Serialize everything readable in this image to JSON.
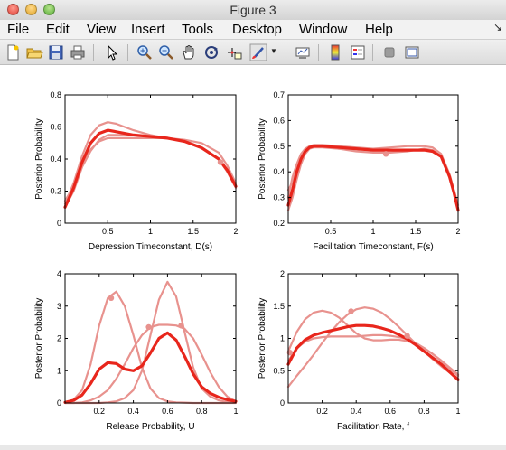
{
  "window": {
    "title": "Figure 3"
  },
  "menu": [
    "File",
    "Edit",
    "View",
    "Insert",
    "Tools",
    "Desktop",
    "Window",
    "Help"
  ],
  "menu_overflow_icon": "arrow-icon",
  "toolbar": [
    "new-figure-icon",
    "open-file-icon",
    "save-icon",
    "print-icon",
    "pointer-icon",
    "zoom-in-icon",
    "zoom-out-icon",
    "pan-hand-icon",
    "rotate-3d-icon",
    "data-cursor-icon",
    "brush-icon",
    "brush-dropdown-icon",
    "link-plot-icon",
    "colorbar-icon",
    "legend-icon",
    "hide-plot-tools-icon",
    "show-plot-tools-icon"
  ],
  "colors": {
    "main": "#e8261c",
    "light": "#e8928e"
  },
  "chart_data": [
    {
      "type": "line",
      "xlabel": "Depression Timeconstant, D(s)",
      "ylabel": "Posterior Probability",
      "xlim": [
        0,
        2
      ],
      "ylim": [
        0,
        0.8
      ],
      "xticks": [
        "0.5",
        "1",
        "1.5",
        "2"
      ],
      "yticks": [
        "0",
        "0.2",
        "0.4",
        "0.6",
        "0.8"
      ],
      "series": [
        {
          "style": "main",
          "x": [
            0,
            0.1,
            0.2,
            0.3,
            0.4,
            0.5,
            0.6,
            0.8,
            1.0,
            1.2,
            1.4,
            1.6,
            1.8,
            1.9,
            2.0
          ],
          "y": [
            0.1,
            0.22,
            0.38,
            0.5,
            0.56,
            0.58,
            0.57,
            0.55,
            0.54,
            0.53,
            0.51,
            0.47,
            0.4,
            0.33,
            0.23
          ]
        },
        {
          "style": "light",
          "x": [
            0,
            0.1,
            0.2,
            0.3,
            0.4,
            0.5,
            0.6,
            0.8,
            1.0,
            1.2,
            1.4,
            1.6,
            1.8,
            1.9,
            2.0
          ],
          "y": [
            0.12,
            0.25,
            0.42,
            0.55,
            0.61,
            0.63,
            0.62,
            0.58,
            0.55,
            0.53,
            0.51,
            0.47,
            0.4,
            0.32,
            0.22
          ]
        },
        {
          "style": "light",
          "x": [
            0,
            0.1,
            0.2,
            0.3,
            0.4,
            0.5,
            0.6,
            0.8,
            1.0,
            1.2,
            1.4,
            1.6,
            1.8,
            1.9,
            2.0
          ],
          "y": [
            0.1,
            0.2,
            0.35,
            0.45,
            0.52,
            0.55,
            0.55,
            0.55,
            0.54,
            0.53,
            0.51,
            0.47,
            0.4,
            0.33,
            0.24
          ]
        },
        {
          "style": "light",
          "x": [
            0,
            0.1,
            0.2,
            0.3,
            0.4,
            0.5,
            0.6,
            0.8,
            1.0,
            1.2,
            1.4,
            1.6,
            1.8,
            1.9,
            2.0
          ],
          "y": [
            0.14,
            0.23,
            0.36,
            0.46,
            0.51,
            0.53,
            0.53,
            0.53,
            0.53,
            0.53,
            0.52,
            0.5,
            0.44,
            0.36,
            0.25
          ]
        }
      ],
      "markers": [
        {
          "x": 1.82,
          "y": 0.38
        }
      ]
    },
    {
      "type": "line",
      "xlabel": "Facilitation Timeconstant, F(s)",
      "ylabel": "Posterior Probability",
      "xlim": [
        0,
        2
      ],
      "ylim": [
        0.2,
        0.7
      ],
      "xticks": [
        "0.5",
        "1",
        "1.5",
        "2"
      ],
      "yticks": [
        "0.2",
        "0.3",
        "0.4",
        "0.5",
        "0.6",
        "0.7"
      ],
      "series": [
        {
          "style": "main",
          "x": [
            0,
            0.05,
            0.1,
            0.15,
            0.2,
            0.25,
            0.3,
            0.4,
            0.6,
            0.8,
            1.0,
            1.2,
            1.4,
            1.6,
            1.7,
            1.8,
            1.9,
            1.95,
            2.0
          ],
          "y": [
            0.27,
            0.33,
            0.4,
            0.45,
            0.48,
            0.495,
            0.5,
            0.5,
            0.495,
            0.49,
            0.485,
            0.485,
            0.485,
            0.485,
            0.48,
            0.46,
            0.38,
            0.32,
            0.25
          ]
        },
        {
          "style": "light",
          "x": [
            0,
            0.05,
            0.1,
            0.15,
            0.2,
            0.25,
            0.3,
            0.4,
            0.6,
            0.8,
            1.0,
            1.2,
            1.4,
            1.6,
            1.7,
            1.8,
            1.9,
            1.95,
            2.0
          ],
          "y": [
            0.3,
            0.38,
            0.43,
            0.47,
            0.49,
            0.5,
            0.505,
            0.505,
            0.5,
            0.495,
            0.49,
            0.485,
            0.485,
            0.485,
            0.48,
            0.46,
            0.38,
            0.32,
            0.26
          ]
        },
        {
          "style": "light",
          "x": [
            0,
            0.05,
            0.1,
            0.15,
            0.2,
            0.25,
            0.3,
            0.4,
            0.6,
            0.8,
            1.0,
            1.2,
            1.4,
            1.6,
            1.7,
            1.8,
            1.9,
            1.95,
            2.0
          ],
          "y": [
            0.25,
            0.3,
            0.37,
            0.43,
            0.47,
            0.49,
            0.5,
            0.5,
            0.49,
            0.48,
            0.475,
            0.475,
            0.48,
            0.49,
            0.485,
            0.46,
            0.38,
            0.32,
            0.25
          ]
        },
        {
          "style": "light",
          "x": [
            0,
            0.05,
            0.1,
            0.15,
            0.2,
            0.25,
            0.3,
            0.4,
            0.6,
            0.8,
            1.0,
            1.2,
            1.4,
            1.6,
            1.7,
            1.8,
            1.9,
            1.95,
            2.0
          ],
          "y": [
            0.33,
            0.36,
            0.41,
            0.45,
            0.48,
            0.49,
            0.495,
            0.495,
            0.49,
            0.49,
            0.49,
            0.495,
            0.5,
            0.5,
            0.495,
            0.47,
            0.39,
            0.33,
            0.27
          ]
        }
      ],
      "markers": [
        {
          "x": 1.15,
          "y": 0.47
        }
      ]
    },
    {
      "type": "line",
      "xlabel": "Release Probability, U",
      "ylabel": "Posterior Probability",
      "xlim": [
        0,
        1
      ],
      "ylim": [
        0,
        4
      ],
      "xticks": [
        "0.2",
        "0.4",
        "0.6",
        "0.8",
        "1"
      ],
      "yticks": [
        "0",
        "1",
        "2",
        "3",
        "4"
      ],
      "series": [
        {
          "style": "main",
          "x": [
            0,
            0.05,
            0.1,
            0.15,
            0.2,
            0.25,
            0.3,
            0.35,
            0.4,
            0.45,
            0.5,
            0.55,
            0.6,
            0.65,
            0.7,
            0.75,
            0.8,
            0.85,
            0.9,
            0.95,
            1.0
          ],
          "y": [
            0.02,
            0.08,
            0.25,
            0.6,
            1.05,
            1.25,
            1.22,
            1.05,
            1.0,
            1.15,
            1.55,
            2.0,
            2.17,
            1.95,
            1.45,
            0.9,
            0.5,
            0.3,
            0.18,
            0.1,
            0.05
          ]
        },
        {
          "style": "light",
          "x": [
            0,
            0.05,
            0.1,
            0.15,
            0.2,
            0.25,
            0.3,
            0.35,
            0.4,
            0.45,
            0.5,
            0.55,
            0.6,
            0.65,
            0.7,
            0.75,
            0.8,
            0.85,
            0.9,
            0.95,
            1.0
          ],
          "y": [
            0.02,
            0.1,
            0.4,
            1.2,
            2.4,
            3.25,
            3.45,
            3.0,
            2.1,
            1.1,
            0.45,
            0.15,
            0.05,
            0.02,
            0.01,
            0.0,
            0.0,
            0.0,
            0.0,
            0.0,
            0.0
          ]
        },
        {
          "style": "light",
          "x": [
            0,
            0.05,
            0.1,
            0.15,
            0.2,
            0.25,
            0.3,
            0.35,
            0.4,
            0.45,
            0.5,
            0.55,
            0.6,
            0.65,
            0.7,
            0.75,
            0.8,
            0.85,
            0.9,
            0.95,
            1.0
          ],
          "y": [
            0.0,
            0.0,
            0.0,
            0.0,
            0.0,
            0.02,
            0.05,
            0.15,
            0.4,
            1.0,
            2.1,
            3.2,
            3.75,
            3.3,
            2.2,
            1.1,
            0.45,
            0.2,
            0.08,
            0.03,
            0.01
          ]
        },
        {
          "style": "light",
          "x": [
            0,
            0.05,
            0.1,
            0.15,
            0.2,
            0.25,
            0.3,
            0.35,
            0.4,
            0.45,
            0.5,
            0.55,
            0.6,
            0.65,
            0.7,
            0.75,
            0.8,
            0.85,
            0.9,
            0.95,
            1.0
          ],
          "y": [
            0.0,
            0.0,
            0.02,
            0.08,
            0.2,
            0.4,
            0.75,
            1.2,
            1.7,
            2.1,
            2.35,
            2.42,
            2.42,
            2.4,
            2.3,
            2.0,
            1.5,
            0.95,
            0.5,
            0.2,
            0.05
          ]
        }
      ],
      "markers": [
        {
          "x": 0.27,
          "y": 3.25
        },
        {
          "x": 0.49,
          "y": 2.35
        },
        {
          "x": 0.68,
          "y": 2.4
        }
      ]
    },
    {
      "type": "line",
      "xlabel": "Facilitation Rate, f",
      "ylabel": "Posterior Probability",
      "xlim": [
        0,
        1
      ],
      "ylim": [
        0,
        2
      ],
      "xticks": [
        "0.2",
        "0.4",
        "0.6",
        "0.8",
        "1"
      ],
      "yticks": [
        "0",
        "0.5",
        "1",
        "1.5",
        "2"
      ],
      "series": [
        {
          "style": "main",
          "x": [
            0,
            0.05,
            0.1,
            0.15,
            0.2,
            0.25,
            0.3,
            0.35,
            0.4,
            0.45,
            0.5,
            0.55,
            0.6,
            0.65,
            0.7,
            0.75,
            0.8,
            0.85,
            0.9,
            0.95,
            1.0
          ],
          "y": [
            0.6,
            0.85,
            0.98,
            1.05,
            1.09,
            1.12,
            1.15,
            1.18,
            1.2,
            1.2,
            1.19,
            1.16,
            1.12,
            1.06,
            0.99,
            0.9,
            0.8,
            0.7,
            0.6,
            0.48,
            0.36
          ]
        },
        {
          "style": "light",
          "x": [
            0,
            0.05,
            0.1,
            0.15,
            0.2,
            0.25,
            0.3,
            0.35,
            0.4,
            0.45,
            0.5,
            0.55,
            0.6,
            0.65,
            0.7,
            0.75,
            0.8,
            0.85,
            0.9,
            0.95,
            1.0
          ],
          "y": [
            0.8,
            1.1,
            1.3,
            1.4,
            1.43,
            1.4,
            1.32,
            1.2,
            1.08,
            1.0,
            0.97,
            0.97,
            0.98,
            0.98,
            0.96,
            0.92,
            0.85,
            0.76,
            0.65,
            0.53,
            0.42
          ]
        },
        {
          "style": "light",
          "x": [
            0,
            0.05,
            0.1,
            0.15,
            0.2,
            0.25,
            0.3,
            0.35,
            0.4,
            0.45,
            0.5,
            0.55,
            0.6,
            0.65,
            0.7,
            0.75,
            0.8,
            0.85,
            0.9,
            0.95,
            1.0
          ],
          "y": [
            0.25,
            0.42,
            0.58,
            0.75,
            0.93,
            1.1,
            1.25,
            1.37,
            1.45,
            1.48,
            1.46,
            1.4,
            1.3,
            1.18,
            1.05,
            0.92,
            0.8,
            0.68,
            0.57,
            0.47,
            0.38
          ]
        },
        {
          "style": "light",
          "x": [
            0,
            0.05,
            0.1,
            0.15,
            0.2,
            0.25,
            0.3,
            0.35,
            0.4,
            0.45,
            0.5,
            0.55,
            0.6,
            0.65,
            0.7,
            0.75,
            0.8,
            0.85,
            0.9,
            0.95,
            1.0
          ],
          "y": [
            0.65,
            0.85,
            0.95,
            1.0,
            1.02,
            1.03,
            1.03,
            1.03,
            1.03,
            1.04,
            1.05,
            1.05,
            1.04,
            1.02,
            0.99,
            0.93,
            0.85,
            0.76,
            0.66,
            0.55,
            0.44
          ]
        }
      ],
      "markers": [
        {
          "x": 0.01,
          "y": 0.78
        },
        {
          "x": 0.37,
          "y": 1.42
        },
        {
          "x": 0.7,
          "y": 1.04
        }
      ]
    }
  ]
}
